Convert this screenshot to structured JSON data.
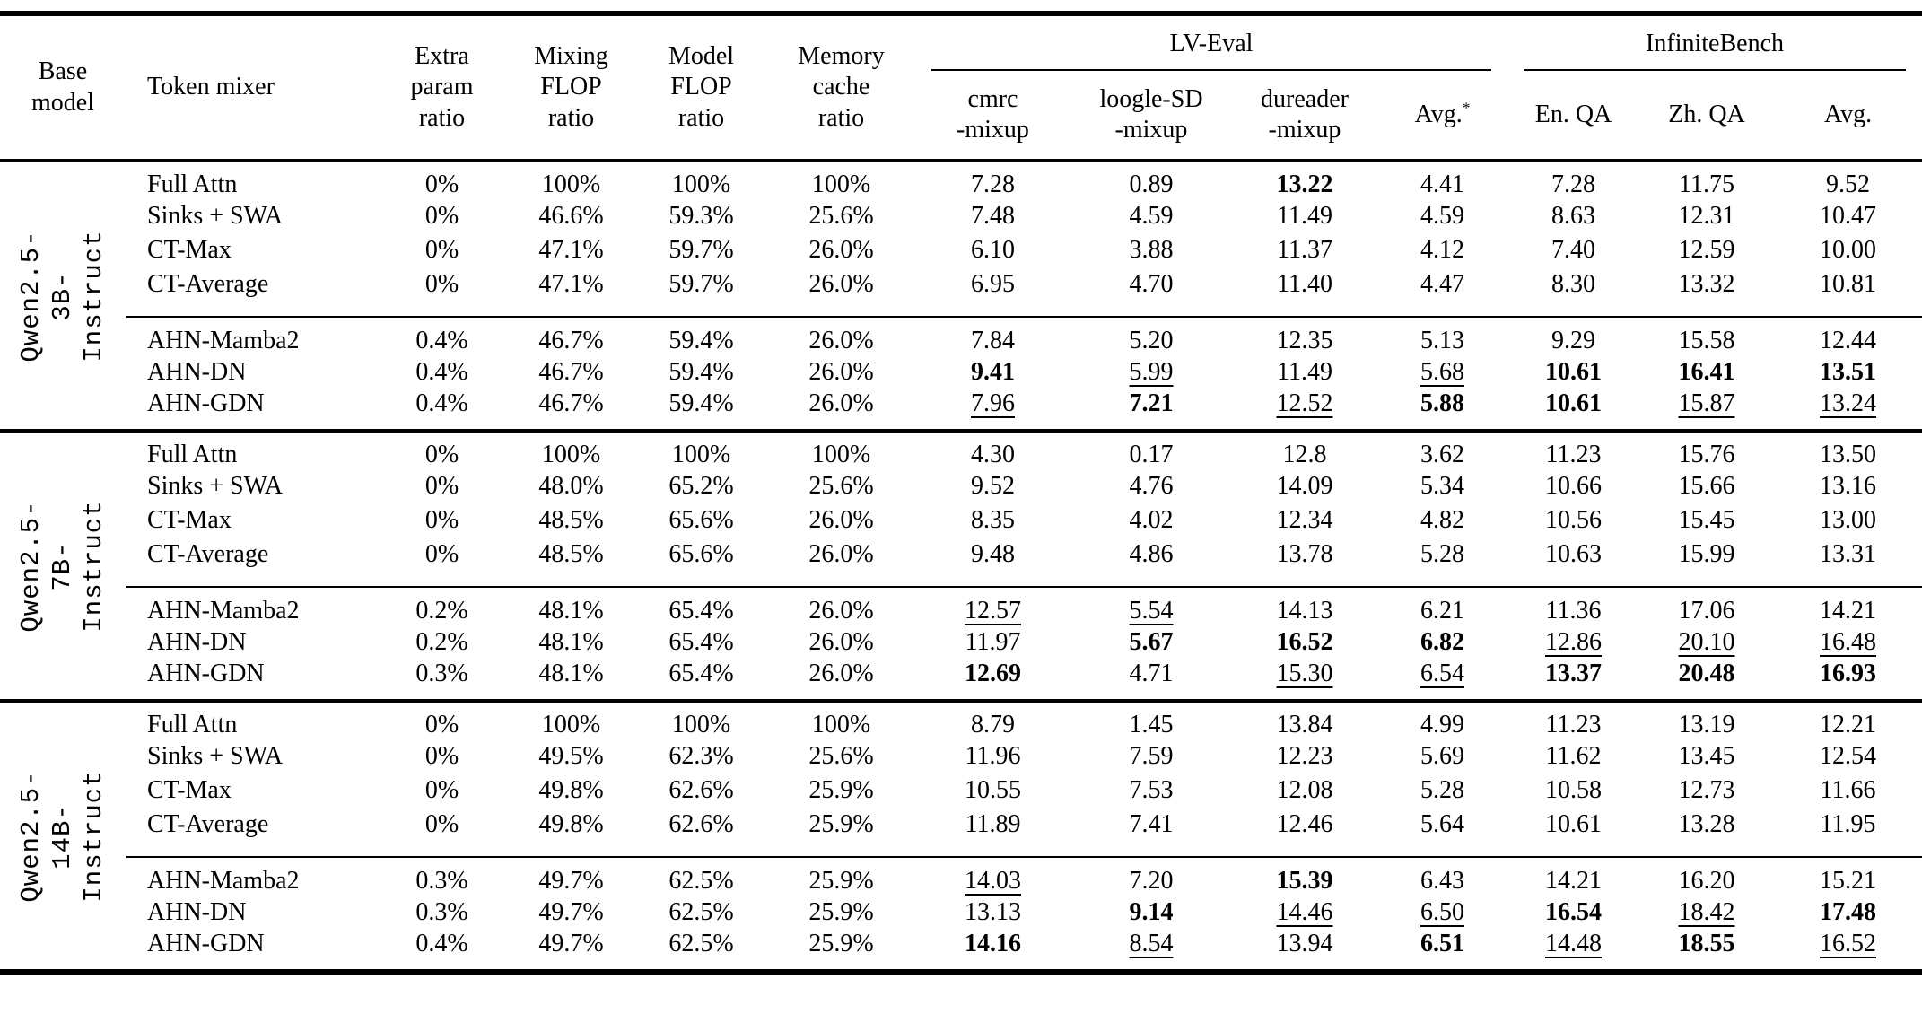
{
  "table": {
    "header": {
      "base_model": "Base\nmodel",
      "token_mixer": "Token mixer",
      "extra_param": "Extra\nparam\nratio",
      "mixing_flop": "Mixing\nFLOP\nratio",
      "model_flop": "Model\nFLOP\nratio",
      "memory_cache": "Memory\ncache\nratio",
      "lv_eval": "LV-Eval",
      "infinitebench": "InfiniteBench",
      "lv_eval_subcols": [
        "cmrc\n-mixup",
        "loogle-SD\n-mixup",
        "dureader\n-mixup"
      ],
      "avg_label": "Avg.",
      "avg_sup": "*",
      "ib_subcols": [
        "En. QA",
        "Zh. QA",
        "Avg."
      ]
    },
    "emphasis_key": {
      "b": "bold",
      "u": "underline",
      "": "plain"
    },
    "groups": [
      {
        "base_model": "Qwen2.5-3B-\nInstruct",
        "baseline_rows": [
          {
            "mixer": "Full Attn",
            "ratios": [
              "0%",
              "100%",
              "100%",
              "100%"
            ],
            "metrics": [
              [
                "7.28",
                ""
              ],
              [
                "0.89",
                ""
              ],
              [
                "13.22",
                "b"
              ],
              [
                "4.41",
                ""
              ],
              [
                "7.28",
                ""
              ],
              [
                "11.75",
                ""
              ],
              [
                "9.52",
                ""
              ]
            ]
          },
          {
            "mixer": "Sinks + SWA",
            "ratios": [
              "0%",
              "46.6%",
              "59.3%",
              "25.6%"
            ],
            "metrics": [
              [
                "7.48",
                ""
              ],
              [
                "4.59",
                ""
              ],
              [
                "11.49",
                ""
              ],
              [
                "4.59",
                ""
              ],
              [
                "8.63",
                ""
              ],
              [
                "12.31",
                ""
              ],
              [
                "10.47",
                ""
              ]
            ]
          },
          {
            "mixer": "CT-Max",
            "ratios": [
              "0%",
              "47.1%",
              "59.7%",
              "26.0%"
            ],
            "metrics": [
              [
                "6.10",
                ""
              ],
              [
                "3.88",
                ""
              ],
              [
                "11.37",
                ""
              ],
              [
                "4.12",
                ""
              ],
              [
                "7.40",
                ""
              ],
              [
                "12.59",
                ""
              ],
              [
                "10.00",
                ""
              ]
            ]
          },
          {
            "mixer": "CT-Average",
            "ratios": [
              "0%",
              "47.1%",
              "59.7%",
              "26.0%"
            ],
            "metrics": [
              [
                "6.95",
                ""
              ],
              [
                "4.70",
                ""
              ],
              [
                "11.40",
                ""
              ],
              [
                "4.47",
                ""
              ],
              [
                "8.30",
                ""
              ],
              [
                "13.32",
                ""
              ],
              [
                "10.81",
                ""
              ]
            ]
          }
        ],
        "ahn_rows": [
          {
            "mixer": "AHN-Mamba2",
            "ratios": [
              "0.4%",
              "46.7%",
              "59.4%",
              "26.0%"
            ],
            "metrics": [
              [
                "7.84",
                ""
              ],
              [
                "5.20",
                ""
              ],
              [
                "12.35",
                ""
              ],
              [
                "5.13",
                ""
              ],
              [
                "9.29",
                ""
              ],
              [
                "15.58",
                ""
              ],
              [
                "12.44",
                ""
              ]
            ]
          },
          {
            "mixer": "AHN-DN",
            "ratios": [
              "0.4%",
              "46.7%",
              "59.4%",
              "26.0%"
            ],
            "metrics": [
              [
                "9.41",
                "b"
              ],
              [
                "5.99",
                "u"
              ],
              [
                "11.49",
                ""
              ],
              [
                "5.68",
                "u"
              ],
              [
                "10.61",
                "b"
              ],
              [
                "16.41",
                "b"
              ],
              [
                "13.51",
                "b"
              ]
            ]
          },
          {
            "mixer": "AHN-GDN",
            "ratios": [
              "0.4%",
              "46.7%",
              "59.4%",
              "26.0%"
            ],
            "metrics": [
              [
                "7.96",
                "u"
              ],
              [
                "7.21",
                "b"
              ],
              [
                "12.52",
                "u"
              ],
              [
                "5.88",
                "b"
              ],
              [
                "10.61",
                "b"
              ],
              [
                "15.87",
                "u"
              ],
              [
                "13.24",
                "u"
              ]
            ]
          }
        ]
      },
      {
        "base_model": "Qwen2.5-7B-\nInstruct",
        "baseline_rows": [
          {
            "mixer": "Full Attn",
            "ratios": [
              "0%",
              "100%",
              "100%",
              "100%"
            ],
            "metrics": [
              [
                "4.30",
                ""
              ],
              [
                "0.17",
                ""
              ],
              [
                "12.8",
                ""
              ],
              [
                "3.62",
                ""
              ],
              [
                "11.23",
                ""
              ],
              [
                "15.76",
                ""
              ],
              [
                "13.50",
                ""
              ]
            ]
          },
          {
            "mixer": "Sinks + SWA",
            "ratios": [
              "0%",
              "48.0%",
              "65.2%",
              "25.6%"
            ],
            "metrics": [
              [
                "9.52",
                ""
              ],
              [
                "4.76",
                ""
              ],
              [
                "14.09",
                ""
              ],
              [
                "5.34",
                ""
              ],
              [
                "10.66",
                ""
              ],
              [
                "15.66",
                ""
              ],
              [
                "13.16",
                ""
              ]
            ]
          },
          {
            "mixer": "CT-Max",
            "ratios": [
              "0%",
              "48.5%",
              "65.6%",
              "26.0%"
            ],
            "metrics": [
              [
                "8.35",
                ""
              ],
              [
                "4.02",
                ""
              ],
              [
                "12.34",
                ""
              ],
              [
                "4.82",
                ""
              ],
              [
                "10.56",
                ""
              ],
              [
                "15.45",
                ""
              ],
              [
                "13.00",
                ""
              ]
            ]
          },
          {
            "mixer": "CT-Average",
            "ratios": [
              "0%",
              "48.5%",
              "65.6%",
              "26.0%"
            ],
            "metrics": [
              [
                "9.48",
                ""
              ],
              [
                "4.86",
                ""
              ],
              [
                "13.78",
                ""
              ],
              [
                "5.28",
                ""
              ],
              [
                "10.63",
                ""
              ],
              [
                "15.99",
                ""
              ],
              [
                "13.31",
                ""
              ]
            ]
          }
        ],
        "ahn_rows": [
          {
            "mixer": "AHN-Mamba2",
            "ratios": [
              "0.2%",
              "48.1%",
              "65.4%",
              "26.0%"
            ],
            "metrics": [
              [
                "12.57",
                "u"
              ],
              [
                "5.54",
                "u"
              ],
              [
                "14.13",
                ""
              ],
              [
                "6.21",
                ""
              ],
              [
                "11.36",
                ""
              ],
              [
                "17.06",
                ""
              ],
              [
                "14.21",
                ""
              ]
            ]
          },
          {
            "mixer": "AHN-DN",
            "ratios": [
              "0.2%",
              "48.1%",
              "65.4%",
              "26.0%"
            ],
            "metrics": [
              [
                "11.97",
                ""
              ],
              [
                "5.67",
                "b"
              ],
              [
                "16.52",
                "b"
              ],
              [
                "6.82",
                "b"
              ],
              [
                "12.86",
                "u"
              ],
              [
                "20.10",
                "u"
              ],
              [
                "16.48",
                "u"
              ]
            ]
          },
          {
            "mixer": "AHN-GDN",
            "ratios": [
              "0.3%",
              "48.1%",
              "65.4%",
              "26.0%"
            ],
            "metrics": [
              [
                "12.69",
                "b"
              ],
              [
                "4.71",
                ""
              ],
              [
                "15.30",
                "u"
              ],
              [
                "6.54",
                "u"
              ],
              [
                "13.37",
                "b"
              ],
              [
                "20.48",
                "b"
              ],
              [
                "16.93",
                "b"
              ]
            ]
          }
        ]
      },
      {
        "base_model": "Qwen2.5-14B-\nInstruct",
        "baseline_rows": [
          {
            "mixer": "Full Attn",
            "ratios": [
              "0%",
              "100%",
              "100%",
              "100%"
            ],
            "metrics": [
              [
                "8.79",
                ""
              ],
              [
                "1.45",
                ""
              ],
              [
                "13.84",
                ""
              ],
              [
                "4.99",
                ""
              ],
              [
                "11.23",
                ""
              ],
              [
                "13.19",
                ""
              ],
              [
                "12.21",
                ""
              ]
            ]
          },
          {
            "mixer": "Sinks + SWA",
            "ratios": [
              "0%",
              "49.5%",
              "62.3%",
              "25.6%"
            ],
            "metrics": [
              [
                "11.96",
                ""
              ],
              [
                "7.59",
                ""
              ],
              [
                "12.23",
                ""
              ],
              [
                "5.69",
                ""
              ],
              [
                "11.62",
                ""
              ],
              [
                "13.45",
                ""
              ],
              [
                "12.54",
                ""
              ]
            ]
          },
          {
            "mixer": "CT-Max",
            "ratios": [
              "0%",
              "49.8%",
              "62.6%",
              "25.9%"
            ],
            "metrics": [
              [
                "10.55",
                ""
              ],
              [
                "7.53",
                ""
              ],
              [
                "12.08",
                ""
              ],
              [
                "5.28",
                ""
              ],
              [
                "10.58",
                ""
              ],
              [
                "12.73",
                ""
              ],
              [
                "11.66",
                ""
              ]
            ]
          },
          {
            "mixer": "CT-Average",
            "ratios": [
              "0%",
              "49.8%",
              "62.6%",
              "25.9%"
            ],
            "metrics": [
              [
                "11.89",
                ""
              ],
              [
                "7.41",
                ""
              ],
              [
                "12.46",
                ""
              ],
              [
                "5.64",
                ""
              ],
              [
                "10.61",
                ""
              ],
              [
                "13.28",
                ""
              ],
              [
                "11.95",
                ""
              ]
            ]
          }
        ],
        "ahn_rows": [
          {
            "mixer": "AHN-Mamba2",
            "ratios": [
              "0.3%",
              "49.7%",
              "62.5%",
              "25.9%"
            ],
            "metrics": [
              [
                "14.03",
                "u"
              ],
              [
                "7.20",
                ""
              ],
              [
                "15.39",
                "b"
              ],
              [
                "6.43",
                ""
              ],
              [
                "14.21",
                ""
              ],
              [
                "16.20",
                ""
              ],
              [
                "15.21",
                ""
              ]
            ]
          },
          {
            "mixer": "AHN-DN",
            "ratios": [
              "0.3%",
              "49.7%",
              "62.5%",
              "25.9%"
            ],
            "metrics": [
              [
                "13.13",
                ""
              ],
              [
                "9.14",
                "b"
              ],
              [
                "14.46",
                "u"
              ],
              [
                "6.50",
                "u"
              ],
              [
                "16.54",
                "b"
              ],
              [
                "18.42",
                "u"
              ],
              [
                "17.48",
                "b"
              ]
            ]
          },
          {
            "mixer": "AHN-GDN",
            "ratios": [
              "0.4%",
              "49.7%",
              "62.5%",
              "25.9%"
            ],
            "metrics": [
              [
                "14.16",
                "b"
              ],
              [
                "8.54",
                "u"
              ],
              [
                "13.94",
                ""
              ],
              [
                "6.51",
                "b"
              ],
              [
                "14.48",
                "u"
              ],
              [
                "18.55",
                "b"
              ],
              [
                "16.52",
                "u"
              ]
            ]
          }
        ]
      }
    ]
  }
}
